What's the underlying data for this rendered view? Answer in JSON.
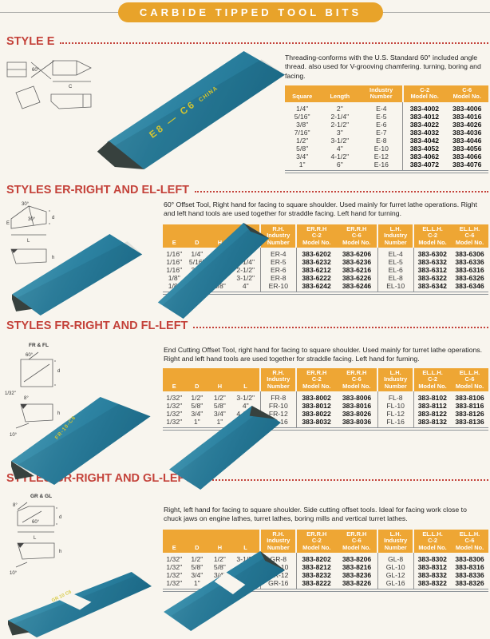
{
  "page": {
    "title": "CARBIDE TIPPED TOOL BITS"
  },
  "colors": {
    "accent_orange": "#E8A32A",
    "table_header_orange": "#EEA634",
    "heading_red": "#C4423A",
    "tool_teal": "#2D83A2",
    "engraving_yellow": "#D4C531"
  },
  "sections": [
    {
      "heading": "STYLE E",
      "description": "Threading-conforms with the U.S. Standard 60°  included angle thread. also used for V-grooving chamfering. turning, boring and facing.",
      "photo_text": "E8 — C6",
      "photo_text2": "CHINA",
      "diagram_labels": [
        "60°",
        "C"
      ],
      "table": {
        "headers": [
          "Square",
          "Length",
          "Industry\nNumber",
          "C-2\nModel No.",
          "C-6\nModel No."
        ],
        "rows": [
          [
            "1/4\"",
            "2\"",
            "E-4",
            "383-4002",
            "383-4006"
          ],
          [
            "5/16\"",
            "2-1/4\"",
            "E-5",
            "383-4012",
            "383-4016"
          ],
          [
            "3/8\"",
            "2-1/2\"",
            "E-6",
            "383-4022",
            "383-4026"
          ],
          [
            "7/16\"",
            "3\"",
            "E-7",
            "383-4032",
            "383-4036"
          ],
          [
            "1/2\"",
            "3-1/2\"",
            "E-8",
            "383-4042",
            "383-4046"
          ],
          [
            "5/8\"",
            "4\"",
            "E-10",
            "383-4052",
            "383-4056"
          ],
          [
            "3/4\"",
            "4-1/2\"",
            "E-12",
            "383-4062",
            "383-4066"
          ],
          [
            "1\"",
            "6\"",
            "E-16",
            "383-4072",
            "383-4076"
          ]
        ]
      }
    },
    {
      "heading": "STYLES ER-RIGHT AND EL-LEFT",
      "description": "60°  Offset Tool, Right hand for facing to square shoulder. Used mainly for furret lathe operations. Right and left hand tools are used together for straddle facing. Left hand for turning.",
      "diagram_labels": [
        "30°",
        "30°",
        "E",
        "d",
        "L",
        "h"
      ],
      "table": {
        "headers": [
          "E",
          "D",
          "H",
          "L",
          "R.H.\nIndustry\nNumber",
          "ER.R.H\nC-2\nModel No.",
          "ER.R.H\nC-6\nModel No.",
          "L.H.\nIndustry\nNumber",
          "EL.L.H.\nC-2\nModel No.",
          "EL.L.H.\nC-6\nModel No."
        ],
        "rows": [
          [
            "1/16\"",
            "1/4\"",
            "1/4\"",
            "2\"",
            "ER-4",
            "383-6202",
            "383-6206",
            "EL-4",
            "383-6302",
            "383-6306"
          ],
          [
            "1/16\"",
            "5/16\"",
            "5/16\"",
            "2-1/4\"",
            "ER-5",
            "383-6232",
            "383-6236",
            "EL-5",
            "383-6332",
            "383-6336"
          ],
          [
            "1/16\"",
            "3/8\"",
            "3/8\"",
            "2-1/2\"",
            "ER-6",
            "383-6212",
            "383-6216",
            "EL-6",
            "383-6312",
            "383-6316"
          ],
          [
            "1/8\"",
            "1/2\"",
            "1/2\"",
            "3-1/2\"",
            "ER-8",
            "383-6222",
            "383-6226",
            "EL-8",
            "383-6322",
            "383-6326"
          ],
          [
            "1/8\"",
            "5/8\"",
            "5/8\"",
            "4\"",
            "ER-10",
            "383-6242",
            "383-6246",
            "EL-10",
            "383-6342",
            "383-6346"
          ]
        ]
      }
    },
    {
      "heading": "STYLES FR-RIGHT AND FL-LEFT",
      "description": "End Cutting Offset Tool, right hand for facing to square shoulder. Used mainly for turret lathe operations. Right and left hand tools are used together for straddle facing. Left hand for furning.",
      "photo_text": "FR-10-C6",
      "diagram_labels": [
        "FR & FL",
        "60°",
        "d",
        "1/32\"",
        "8°",
        "h",
        "10°"
      ],
      "table": {
        "headers": [
          "E",
          "D",
          "H",
          "L",
          "R.H.\nIndustry\nNumber",
          "ER.R.H\nC-2\nModel No.",
          "ER.R.H\nC-6\nModel No.",
          "L.H.\nIndustry\nNumber",
          "EL.L.H.\nC-2\nModel No.",
          "EL.L.H.\nC-6\nModel No."
        ],
        "rows": [
          [
            "1/32\"",
            "1/2\"",
            "1/2\"",
            "3-1/2\"",
            "FR-8",
            "383-8002",
            "383-8006",
            "FL-8",
            "383-8102",
            "383-8106"
          ],
          [
            "1/32\"",
            "5/8\"",
            "5/8\"",
            "4\"",
            "FR-10",
            "383-8012",
            "383-8016",
            "FL-10",
            "383-8112",
            "383-8116"
          ],
          [
            "1/32\"",
            "3/4\"",
            "3/4\"",
            "4-1/2\"",
            "FR-12",
            "383-8022",
            "383-8026",
            "FL-12",
            "383-8122",
            "383-8126"
          ],
          [
            "1/32\"",
            "1\"",
            "1\"",
            "6\"",
            "FR-16",
            "383-8032",
            "383-8036",
            "FL-16",
            "383-8132",
            "383-8136"
          ]
        ]
      }
    },
    {
      "heading": "STYLES GR-RIGHT AND GL-LEFT",
      "description": "Right, left hand for facing to square shoulder. Side cutting offset tools. Ideal for facing work close to chuck jaws on engine lathes, turret lathes, boring mills and vertical turret lathes.",
      "photo_text": "GR 10 C6",
      "diagram_labels": [
        "GR & GL",
        "8°",
        "60°",
        "d",
        "L",
        "h",
        "10°"
      ],
      "table": {
        "headers": [
          "E",
          "D",
          "H",
          "L",
          "R.H.\nIndustry\nNumber",
          "ER.R.H\nC-2\nModel No.",
          "ER.R.H\nC-6\nModel No.",
          "L.H.\nIndustry\nNumber",
          "EL.L.H.\nC-2\nModel No.",
          "EL.L.H.\nC-6\nModel No."
        ],
        "rows": [
          [
            "1/32\"",
            "1/2\"",
            "1/2\"",
            "3-1/2\"",
            "GR-8",
            "383-8202",
            "383-8206",
            "GL-8",
            "383-8302",
            "383-8306"
          ],
          [
            "1/32\"",
            "5/8\"",
            "5/8\"",
            "4\"",
            "GR-10",
            "383-8212",
            "383-8216",
            "GL-10",
            "383-8312",
            "383-8316"
          ],
          [
            "1/32\"",
            "3/4\"",
            "3/4\"",
            "4-1/2\"",
            "GR-12",
            "383-8232",
            "383-8236",
            "GL-12",
            "383-8332",
            "383-8336"
          ],
          [
            "1/32\"",
            "1\"",
            "1\"",
            "6\"",
            "GR-16",
            "383-8222",
            "383-8226",
            "GL-16",
            "383-8322",
            "383-8326"
          ]
        ]
      }
    }
  ]
}
